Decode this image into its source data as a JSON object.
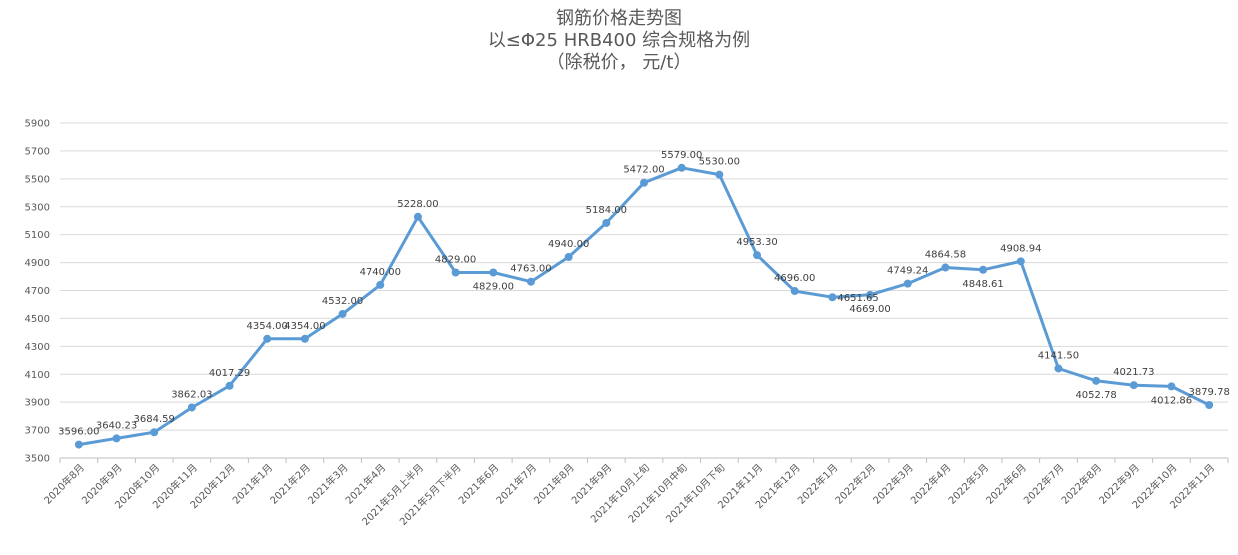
{
  "chart_data": {
    "type": "line",
    "title": "钢筋价格走势图",
    "subtitle": "以≤Φ25 HRB400 综合规格为例",
    "unit_note": "（除税价，  元/t）",
    "xlabel": "",
    "ylabel": "",
    "ylim": [
      3500,
      5900
    ],
    "y_ticks": [
      3500,
      3700,
      3900,
      4100,
      4300,
      4500,
      4700,
      4900,
      5100,
      5300,
      5500,
      5700,
      5900
    ],
    "grid": true,
    "legend": "none",
    "series_color": "#5b9bd5",
    "categories": [
      "2020年8月",
      "2020年9月",
      "2020年10月",
      "2020年11月",
      "2020年12月",
      "2021年1月",
      "2021年2月",
      "2021年3月",
      "2021年4月",
      "2021年5月上半月",
      "2021年5月下半月",
      "2021年6月",
      "2021年7月",
      "2021年8月",
      "2021年9月",
      "2021年10月上旬",
      "2021年10月中旬",
      "2021年10月下旬",
      "2021年11月",
      "2021年12月",
      "2022年1月",
      "2022年2月",
      "2022年3月",
      "2022年4月",
      "2022年5月",
      "2022年6月",
      "2022年7月",
      "2022年8月",
      "2022年9月",
      "2022年10月",
      "2022年11月"
    ],
    "values": [
      3596.0,
      3640.23,
      3684.59,
      3862.03,
      4017.29,
      4354.0,
      4354.0,
      4532.0,
      4740.0,
      5228.0,
      4829.0,
      4829.0,
      4763.0,
      4940.0,
      5184.0,
      5472.0,
      5579.0,
      5530.0,
      4953.3,
      4696.0,
      4651.65,
      4669.0,
      4749.24,
      4864.58,
      4848.61,
      4908.94,
      4141.5,
      4052.78,
      4021.73,
      4012.86,
      3879.78
    ],
    "data_labels": [
      "3596.00",
      "3640.23",
      "3684.59",
      "3862.03",
      "4017.29",
      "4354.00",
      "4354.00",
      "4532.00",
      "4740.00",
      "5228.00",
      "4829.00",
      "4829.00",
      "4763.00",
      "4940.00",
      "5184.00",
      "5472.00",
      "5579.00",
      "5530.00",
      "4953.30",
      "4696.00",
      "4651.65",
      "4669.00",
      "4749.24",
      "4864.58",
      "4848.61",
      "4908.94",
      "4141.50",
      "4052.78",
      "4021.73",
      "4012.86",
      "3879.78"
    ],
    "label_positions": [
      "above",
      "above",
      "above",
      "above",
      "above",
      "above",
      "above",
      "above",
      "above",
      "above",
      "above",
      "below",
      "above",
      "above",
      "above",
      "above",
      "above",
      "above",
      "above",
      "above",
      "right",
      "below",
      "above",
      "above",
      "below",
      "above",
      "above",
      "below",
      "above",
      "below",
      "above"
    ]
  }
}
